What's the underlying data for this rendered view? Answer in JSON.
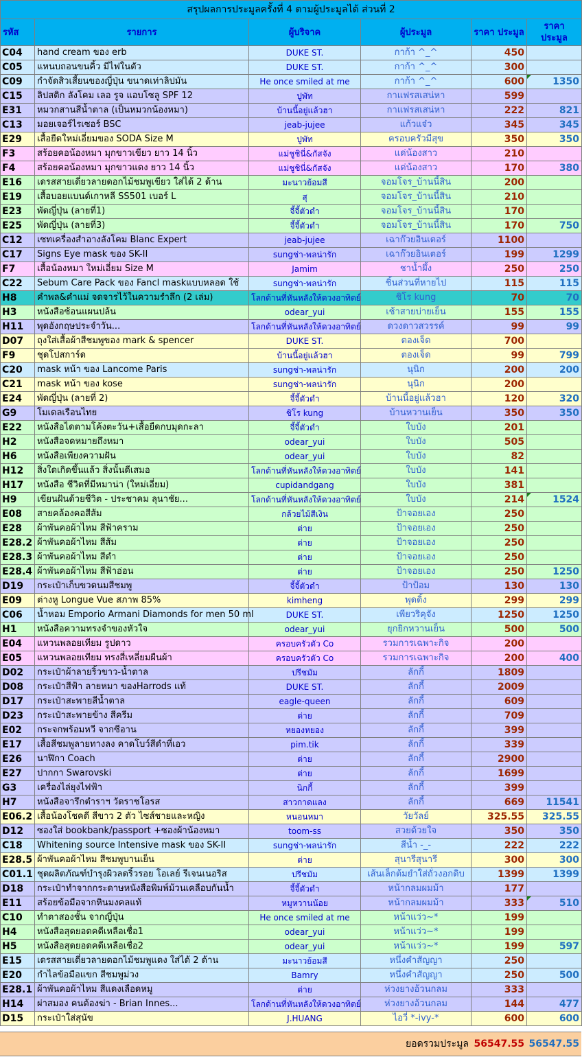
{
  "title": "สรุปผลการประมูลครั้งที่ 4 ตามผู้ประมูลได้ ส่วนที่ 2",
  "headers": {
    "code": "รหัส",
    "item": "รายการ",
    "donor": "ผู้บริจาค",
    "winner": "ผู้ประมูล",
    "price": "ราคา ประมูล",
    "total": "ราคา ประมูล"
  },
  "rows": [
    {
      "code": "C04",
      "item": "hand cream ของ erb",
      "donor": "DUKE ST.",
      "winner": "กาก้า ^_^",
      "price": "450",
      "total": "",
      "color": "blue"
    },
    {
      "code": "C05",
      "item": "แหนบถอนขนคิ้ว มีไฟในตัว",
      "donor": "DUKE ST.",
      "winner": "กาก้า ^_^",
      "price": "300",
      "total": "",
      "color": "blue"
    },
    {
      "code": "C09",
      "item": "กำจัดสิวเสี้ยนของญี่ปุ่น ขนาดเท่าลิปมัน",
      "donor": "He once smiled at me",
      "winner": "กาก้า ^_^",
      "price": "600",
      "total": "1350",
      "color": "blue",
      "mark": true
    },
    {
      "code": "C15",
      "item": "ลิปสติก ลังโคม เลอ รูจ แอบโซลู SPF 12",
      "donor": "ปูพัท",
      "winner": "กาแฟรสเสน่หา",
      "price": "599",
      "total": "",
      "color": "purple"
    },
    {
      "code": "E31",
      "item": "หมวกสานสีน้ำตาล (เป็นหมวกน้องหมา)",
      "donor": "บ้านนี้อยู่แล้วฮา",
      "winner": "กาแฟรสเสน่หา",
      "price": "222",
      "total": "821",
      "color": "purple"
    },
    {
      "code": "C13",
      "item": "มอยเจอร์ไรเซอร์ BSC",
      "donor": "jeab-jujee",
      "winner": "แก้วแจ๋ว",
      "price": "345",
      "total": "345",
      "color": "purple"
    },
    {
      "code": "E29",
      "item": "เสื้อยืดใหม่เอี่ยมของ SODA Size M",
      "donor": "ปูพัท",
      "winner": "ครอบครัวมีสุข",
      "price": "350",
      "total": "350",
      "color": "yellow"
    },
    {
      "code": "F3",
      "item": "สร้อยคอน้องหมา มุกขาวเขียว ยาว 14 นิ้ว",
      "donor": "แม่ชูชินี่&กัสจัง",
      "winner": "แด่น้องสาว",
      "price": "210",
      "total": "",
      "color": "pink"
    },
    {
      "code": "F4",
      "item": "สร้อยคอน้องหมา มุกขาวแดง ยาว 14 นิ้ว",
      "donor": "แม่ชูชินี่&กัสจัง",
      "winner": "แด่น้องสาว",
      "price": "170",
      "total": "380",
      "color": "pink"
    },
    {
      "code": "E16",
      "item": "เดรสสายเดี่ยวลายดอกไม้ชมพูเขียว ใส่ได้ 2 ด้าน",
      "donor": "มะนาวย้อมสี",
      "winner": "จอมโจร_บ้านนี้สิน",
      "price": "200",
      "total": "",
      "color": "green"
    },
    {
      "code": "E19",
      "item": "เสื้อบอยแบนด์เกาหลี SS501 เบอร์ L",
      "donor": "สุ",
      "winner": "จอมโจร_บ้านนี้สิน",
      "price": "210",
      "total": "",
      "color": "green"
    },
    {
      "code": "E23",
      "item": "พัดญี่ปุ่น (ลายที่1)",
      "donor": "จี้จี้ตัวดำ",
      "winner": "จอมโจร_บ้านนี้สิน",
      "price": "170",
      "total": "",
      "color": "green"
    },
    {
      "code": "E25",
      "item": "พัดญี่ปุ่น (ลายที่3)",
      "donor": "จี้จี้ตัวดำ",
      "winner": "จอมโจร_บ้านนี้สิน",
      "price": "170",
      "total": "750",
      "color": "green"
    },
    {
      "code": "C12",
      "item": "เซทเครื่องสำอางลังโคม Blanc Expert",
      "donor": "jeab-jujee",
      "winner": "เฉาก๊วยอินเตอร์",
      "price": "1100",
      "total": "",
      "color": "purple"
    },
    {
      "code": "C17",
      "item": "Signs Eye mask ของ SK-II",
      "donor": "sungช่า-พลน่ารัก",
      "winner": "เฉาก๊วยอินเตอร์",
      "price": "199",
      "total": "1299",
      "color": "purple"
    },
    {
      "code": "F7",
      "item": "เสื้อน้องหมา ใหม่เอี่ยม Size M",
      "donor": "Jamim",
      "winner": "ชาน้ำผึ้ง",
      "price": "250",
      "total": "250",
      "color": "pink"
    },
    {
      "code": "C22",
      "item": "Sebum Care Pack ของ Fancl maskแบบหลอด ใช้",
      "donor": "sungช่า-พลน่ารัก",
      "winner": "ชิ้นส่วนที่หายไป",
      "price": "115",
      "total": "115",
      "color": "blue"
    },
    {
      "code": "H8",
      "item": "คำพล&คำแม่ จดจารไว้ในความรำลึก (2 เล่ม)",
      "donor": "โลกด้านที่หันหลังให้ดวงอาทิตย์",
      "winner": "ชิโร kung",
      "price": "70",
      "total": "70",
      "color": "teal"
    },
    {
      "code": "H3",
      "item": "หนังสือซ้อนแผนปล้น",
      "donor": "odear_yui",
      "winner": "เช้าสายบ่ายเย็น",
      "price": "155",
      "total": "155",
      "color": "green"
    },
    {
      "code": "H11",
      "item": "พุดอังกฤษประจำวัน...",
      "donor": "โลกด้านที่หันหลังให้ดวงอาทิตย์",
      "winner": "ดวงดาวสวรรค์",
      "price": "99",
      "total": "99",
      "color": "purple"
    },
    {
      "code": "D07",
      "item": "ถุงใส่เสื้อผ้าสีชมพูของ mark & spencer",
      "donor": "DUKE ST.",
      "winner": "ตองเจ็ด",
      "price": "700",
      "total": "",
      "color": "yellow"
    },
    {
      "code": "F9",
      "item": "ชุดโปสการ์ด",
      "donor": "บ้านนี้อยู่แล้วฮา",
      "winner": "ตองเจ็ด",
      "price": "99",
      "total": "799",
      "color": "yellow"
    },
    {
      "code": "C20",
      "item": "mask หน้า ของ Lancome Paris",
      "donor": "sungช่า-พลน่ารัก",
      "winner": "นุนิก",
      "price": "200",
      "total": "200",
      "color": "blue"
    },
    {
      "code": "C21",
      "item": "mask หน้า ของ kose",
      "donor": "sungช่า-พลน่ารัก",
      "winner": "นุนิก",
      "price": "200",
      "total": "",
      "color": "yellow"
    },
    {
      "code": "E24",
      "item": "พัดญี่ปุ่น (ลายที่ 2)",
      "donor": "จี้จี้ตัวดำ",
      "winner": "บ้านนี้อยู่แล้วฮา",
      "price": "120",
      "total": "320",
      "color": "yellow"
    },
    {
      "code": "G9",
      "item": "โมเดลเรือนไทย",
      "donor": "ชิโร kung",
      "winner": "บ้านหวานเย็น",
      "price": "350",
      "total": "350",
      "color": "purple"
    },
    {
      "code": "E22",
      "item": "หนังสือไดตามโค้งตะวัน+เสื้อยืดกบมุดกะลา",
      "donor": "จี้จี้ตัวดำ",
      "winner": "ใบบัง",
      "price": "201",
      "total": "",
      "color": "green"
    },
    {
      "code": "H2",
      "item": "หนังสือจดหมายถึงหมา",
      "donor": "odear_yui",
      "winner": "ใบบัง",
      "price": "505",
      "total": "",
      "color": "green"
    },
    {
      "code": "H6",
      "item": "หนังสือเพียงความฝัน",
      "donor": "odear_yui",
      "winner": "ใบบัง",
      "price": "82",
      "total": "",
      "color": "green"
    },
    {
      "code": "H12",
      "item": "สิ่งใดเกิดขึ้นแล้ว สิ่งนั้นดีเสมอ",
      "donor": "โลกด้านที่หันหลังให้ดวงอาทิตย์",
      "winner": "ใบบัง",
      "price": "141",
      "total": "",
      "color": "green"
    },
    {
      "code": "H17",
      "item": "หนังสือ ชีวิตที่มีหมาน่า (ใหม่เอี่ยม)",
      "donor": "cupidandgang",
      "winner": "ใบบัง",
      "price": "381",
      "total": "",
      "color": "green"
    },
    {
      "code": "H9",
      "item": "เขียนฝันด้วยชีวิต - ประชาคม ลุนาชัย...",
      "donor": "โลกด้านที่หันหลังให้ดวงอาทิตย์",
      "winner": "ใบบัง",
      "price": "214",
      "total": "1524",
      "color": "green",
      "mark": true
    },
    {
      "code": "E08",
      "item": "สายคล้องคอสีส้ม",
      "donor": "กล้วยไม้สีเงิน",
      "winner": "ป้าจอยเอง",
      "price": "250",
      "total": "",
      "color": "green"
    },
    {
      "code": "E28",
      "item": "ผ้าพันคอผ้าไหม สีฟ้าคราม",
      "donor": "ต่าย",
      "winner": "ป้าจอยเอง",
      "price": "250",
      "total": "",
      "color": "green"
    },
    {
      "code": "E28.2",
      "item": "ผ้าพันคอผ้าไหม สีส้ม",
      "donor": "ต่าย",
      "winner": "ป้าจอยเอง",
      "price": "250",
      "total": "",
      "color": "green"
    },
    {
      "code": "E28.3",
      "item": "ผ้าพันคอผ้าไหม สีดำ",
      "donor": "ต่าย",
      "winner": "ป้าจอยเอง",
      "price": "250",
      "total": "",
      "color": "green"
    },
    {
      "code": "E28.4",
      "item": "ผ้าพันคอผ้าไหม สีฟ้าอ่อน",
      "donor": "ต่าย",
      "winner": "ป้าจอยเอง",
      "price": "250",
      "total": "1250",
      "color": "green"
    },
    {
      "code": "D19",
      "item": "กระเป๋าเก็บขวดนมสีชมพู",
      "donor": "จี้จี้ตัวดำ",
      "winner": "ป้าป้อม",
      "price": "130",
      "total": "130",
      "color": "purple"
    },
    {
      "code": "E09",
      "item": "ต่างหู Longue Vue สภาพ 85%",
      "donor": "kimheng",
      "winner": "พุดดิ้ง",
      "price": "299",
      "total": "299",
      "color": "yellow"
    },
    {
      "code": "C06",
      "item": "น้ำหอม Emporio Armani Diamonds for men 50 ml",
      "donor": "DUKE ST.",
      "winner": "เพียวริคุจัง",
      "price": "1250",
      "total": "1250",
      "color": "blue"
    },
    {
      "code": "H1",
      "item": "หนังสือความทรงจำของหัวใจ",
      "donor": "odear_yui",
      "winner": "ยุกยิกหวานเย็น",
      "price": "500",
      "total": "500",
      "color": "green"
    },
    {
      "code": "E04",
      "item": "แหวนพลอยเทียม รูปดาว",
      "donor": "ครอบครัวตัว Co",
      "winner": "รวมการเฉพาะกิจ",
      "price": "200",
      "total": "",
      "color": "pink"
    },
    {
      "code": "E05",
      "item": "แหวนพลอยเทียม ทรงสี่เหลี่ยมผืนผ้า",
      "donor": "ครอบครัวตัว Co",
      "winner": "รวมการเฉพาะกิจ",
      "price": "200",
      "total": "400",
      "color": "pink"
    },
    {
      "code": "D02",
      "item": "กระเป๋าผ้าลายริ้วขาว-น้ำตาล",
      "donor": "ปรีชมัม",
      "winner": "ลักกี้",
      "price": "1809",
      "total": "",
      "color": "purple"
    },
    {
      "code": "D08",
      "item": "กระเป๋าสีฟ้า ลายหมา ของHarrods แท้",
      "donor": "DUKE ST.",
      "winner": "ลักกี้",
      "price": "2009",
      "total": "",
      "color": "purple"
    },
    {
      "code": "D17",
      "item": "กระเป๋าสะพายสีน้ำตาล",
      "donor": "eagle-queen",
      "winner": "ลักกี้",
      "price": "609",
      "total": "",
      "color": "purple"
    },
    {
      "code": "D23",
      "item": "กระเป๋าสะพายข้าง สีครีม",
      "donor": "ต่าย",
      "winner": "ลักกี้",
      "price": "709",
      "total": "",
      "color": "purple"
    },
    {
      "code": "E02",
      "item": "กระจกพร้อมหวี จากซีอาน",
      "donor": "หยองหยอง",
      "winner": "ลักกี้",
      "price": "399",
      "total": "",
      "color": "purple"
    },
    {
      "code": "E17",
      "item": "เสื้อสีชมพูลายทางลง คาดโบว์สีดำที่เอว",
      "donor": "pim.tik",
      "winner": "ลักกี้",
      "price": "339",
      "total": "",
      "color": "purple"
    },
    {
      "code": "E26",
      "item": "นาฬิกา Coach",
      "donor": "ต่าย",
      "winner": "ลักกี้",
      "price": "2900",
      "total": "",
      "color": "purple"
    },
    {
      "code": "E27",
      "item": "ปากกา Swarovski",
      "donor": "ต่าย",
      "winner": "ลักกี้",
      "price": "1699",
      "total": "",
      "color": "purple"
    },
    {
      "code": "G3",
      "item": "เครื่องไล่ยุงไฟฟ้า",
      "donor": "นิกกี้",
      "winner": "ลักกี้",
      "price": "399",
      "total": "",
      "color": "purple"
    },
    {
      "code": "H7",
      "item": "หนังสือจารึกตำราฯ วัดราชโอรส",
      "donor": "สาวกาดแลง",
      "winner": "ลักกี้",
      "price": "669",
      "total": "11541",
      "color": "purple"
    },
    {
      "code": "E06.2",
      "item": "เสื้อน้องโชคดี สีขาว 2 ตัว ไซส์ชายและหญิง",
      "donor": "หนอนหมา",
      "winner": "วัยวัลย์",
      "price": "325.55",
      "total": "325.55",
      "color": "yellow"
    },
    {
      "code": "D12",
      "item": "ซองใส่ bookbank/passport +ซองผ้าน้องหมา",
      "donor": "toom-ss",
      "winner": "สวยด้วยใจ",
      "price": "350",
      "total": "350",
      "color": "purple"
    },
    {
      "code": "C18",
      "item": "Whitening source Intensive mask ของ SK-II",
      "donor": "sungช่า-พลน่ารัก",
      "winner": "สีน้ำ -_-",
      "price": "222",
      "total": "222",
      "color": "blue"
    },
    {
      "code": "E28.5",
      "item": "ผ้าพันคอผ้าไหม สีชมพูบานเย็น",
      "donor": "ต่าย",
      "winner": "สุนารีสุนารี",
      "price": "300",
      "total": "300",
      "color": "yellow"
    },
    {
      "code": "C01.1",
      "item": "ชุดผลิตภัณฑ์บำรุงผิวลดริ้วรอย โอเลย์ รีเจนเนอริส",
      "donor": "ปรีชมัม",
      "winner": "เส้นเล็กต้มยำใส่ถั่วงอกดิบ",
      "price": "1399",
      "total": "1399",
      "color": "blue"
    },
    {
      "code": "D18",
      "item": "กระเป๋าทำจากกระดาษหนังสือพิมพ์ม้วนเคลือบกันน้ำ",
      "donor": "จี้จี้ตัวดำ",
      "winner": "หน้ากลมผมม้า",
      "price": "177",
      "total": "",
      "color": "purple"
    },
    {
      "code": "E11",
      "item": "สร้อยข้อมือจากหินมงคลแท้",
      "donor": "หมูหวานน้อย",
      "winner": "หน้ากลมผมม้า",
      "price": "333",
      "total": "510",
      "color": "purple",
      "mark": true
    },
    {
      "code": "C10",
      "item": "ทำตาสองชั้น จากญี่ปุ่น",
      "donor": "He once smiled at me",
      "winner": "หน้าแว่ว~*",
      "price": "199",
      "total": "",
      "color": "green"
    },
    {
      "code": "H4",
      "item": "หนังสือสุดยอดคดีเหลือเชื่อ1",
      "donor": "odear_yui",
      "winner": "หน้าแว่ว~*",
      "price": "199",
      "total": "",
      "color": "green"
    },
    {
      "code": "H5",
      "item": "หนังสือสุดยอดคดีเหลือเชื่อ2",
      "donor": "odear_yui",
      "winner": "หน้าแว่ว~*",
      "price": "199",
      "total": "597",
      "color": "green"
    },
    {
      "code": "E15",
      "item": "เดรสสายเดี่ยวลายดอกไม้ชมพูแดง ใส่ได้ 2 ด้าน",
      "donor": "มะนาวย้อมสี",
      "winner": "หนึ่งคำสัญญา",
      "price": "250",
      "total": "",
      "color": "blue"
    },
    {
      "code": "E20",
      "item": "กำไลข้อมือแขก สีชมพูม่วง",
      "donor": "Bamry",
      "winner": "หนึ่งคำสัญญา",
      "price": "250",
      "total": "500",
      "color": "blue"
    },
    {
      "code": "E28.1",
      "item": "ผ้าพันคอผ้าไหม สีแดงเลือดหมู",
      "donor": "ต่าย",
      "winner": "ห่วงยางอ้วนกลม",
      "price": "333",
      "total": "",
      "color": "purple"
    },
    {
      "code": "H14",
      "item": "ผ่าสมอง คนต้องฆ่า - Brian Innes...",
      "donor": "โลกด้านที่หันหลังให้ดวงอาทิตย์",
      "winner": "ห่วงยางอ้วนกลม",
      "price": "144",
      "total": "477",
      "color": "purple"
    },
    {
      "code": "D15",
      "item": "กระเป๋าใส่สุนัข",
      "donor": "J.HUANG",
      "winner": "ไอวี่ *-ivy-*",
      "price": "600",
      "total": "600",
      "color": "yellow"
    }
  ],
  "summary": {
    "label": "ยอดรวมประมูล",
    "price_total": "56547.55",
    "grand_total": "56547.55"
  },
  "colors": {
    "header": "#00b0f0",
    "blue": "#ccecff",
    "green": "#ccffcc",
    "pink": "#ffccff",
    "purple": "#ccccff",
    "yellow": "#ffffcc",
    "teal": "#33cccc",
    "summary": "#fbcf9f"
  }
}
